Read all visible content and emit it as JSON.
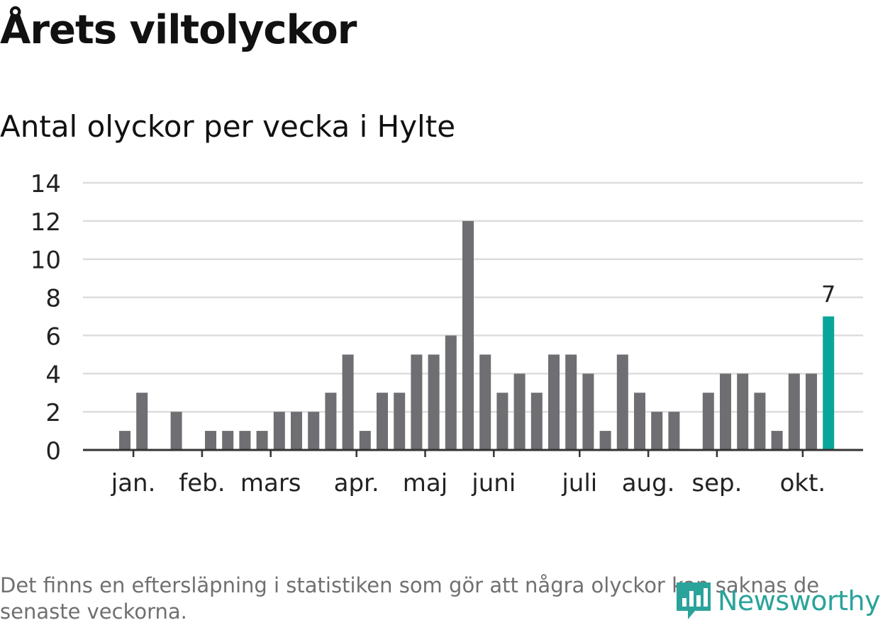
{
  "title": "Årets viltolyckor",
  "subtitle": "Antal olyckor per vecka i Hylte",
  "note": "Det finns en eftersläpning i statistiken som gör att några olyckor kan saknas de senaste veckorna.",
  "logo": {
    "text": "Newsworthy",
    "icon": "newsworthy-logo-icon",
    "color": "#2aa39b"
  },
  "colors": {
    "bar": "#6e6e73",
    "highlight": "#0aa59a",
    "grid": "#dddddd",
    "axis": "#333333",
    "text": "#222222"
  },
  "chart_data": {
    "type": "bar",
    "values": [
      1,
      3,
      0,
      2,
      0,
      1,
      1,
      1,
      1,
      2,
      2,
      2,
      3,
      5,
      1,
      3,
      3,
      5,
      5,
      6,
      12,
      5,
      3,
      4,
      3,
      5,
      5,
      4,
      1,
      5,
      3,
      2,
      2,
      0,
      3,
      4,
      4,
      3,
      1,
      4,
      4,
      7
    ],
    "highlight_index": 41,
    "highlight_label": "7",
    "ylim": [
      0,
      14
    ],
    "yticks": [
      "0",
      "2",
      "4",
      "6",
      "8",
      "10",
      "12",
      "14"
    ],
    "month_labels": [
      {
        "label": "jan.",
        "index": 0.5
      },
      {
        "label": "feb.",
        "index": 4.5
      },
      {
        "label": "mars",
        "index": 8.5
      },
      {
        "label": "apr.",
        "index": 13.5
      },
      {
        "label": "maj",
        "index": 17.5
      },
      {
        "label": "juni",
        "index": 21.5
      },
      {
        "label": "juli",
        "index": 26.5
      },
      {
        "label": "aug.",
        "index": 30.5
      },
      {
        "label": "sep.",
        "index": 34.5
      },
      {
        "label": "okt.",
        "index": 39.5
      }
    ],
    "grid": true,
    "xlabel": "",
    "ylabel": ""
  }
}
